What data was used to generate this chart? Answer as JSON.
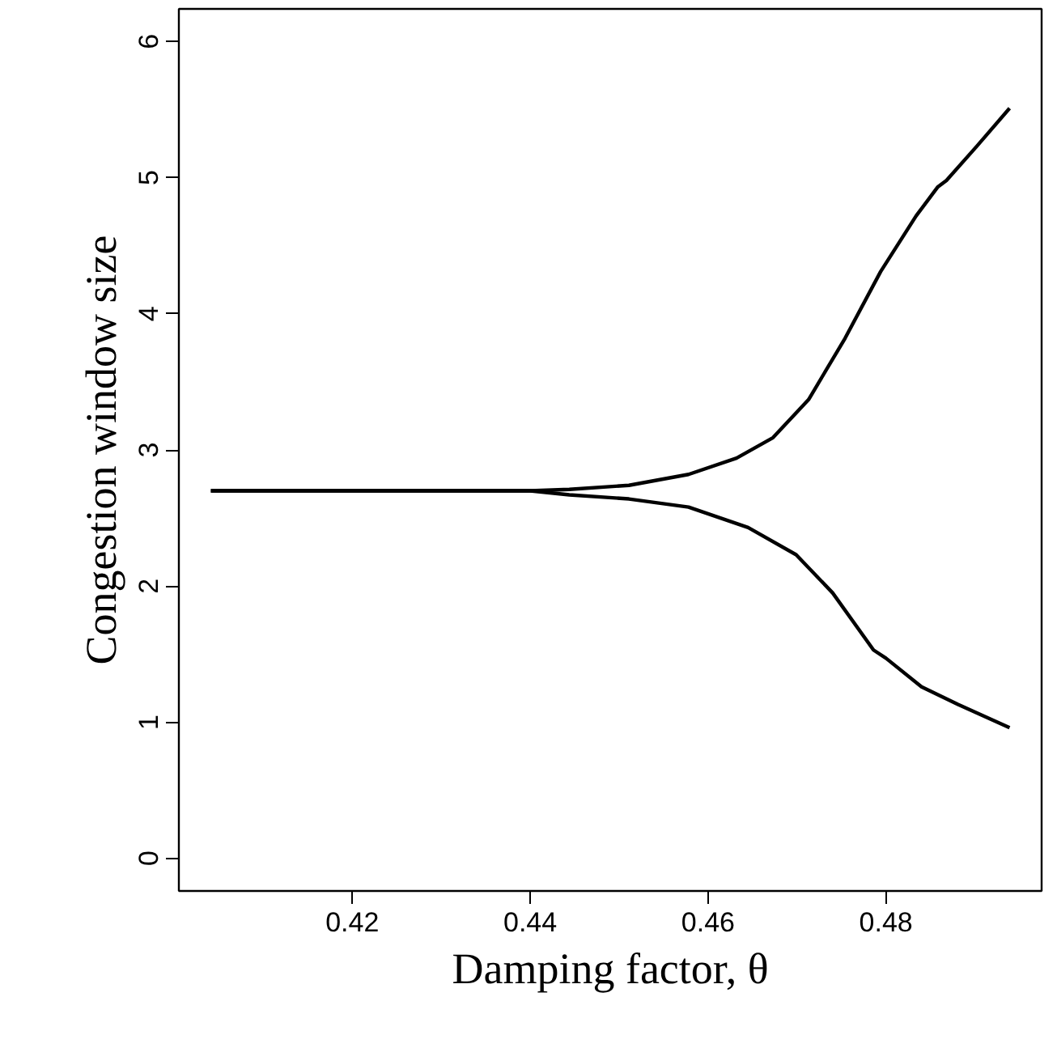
{
  "chart_data": {
    "type": "line",
    "xlabel": "Damping factor, θ",
    "ylabel": "Congestion window size",
    "xlim": [
      0.4005,
      0.4975
    ],
    "ylim": [
      -0.24,
      6.24
    ],
    "xticks": [
      0.42,
      0.44,
      0.46,
      0.48
    ],
    "yticks": [
      0,
      1,
      2,
      3,
      4,
      5,
      6
    ],
    "grid": false,
    "marker": "none",
    "line_style": "solid",
    "series": [
      {
        "color": "#000000",
        "x": [
          0.4041,
          0.42,
          0.43,
          0.44,
          0.4444,
          0.4511,
          0.4578,
          0.4632,
          0.4673,
          0.4713,
          0.4754,
          0.4794,
          0.4834,
          0.4858,
          0.4868,
          0.4902,
          0.4939
        ],
        "values": [
          2.7,
          2.7,
          2.7,
          2.7,
          2.71,
          2.74,
          2.82,
          2.94,
          3.09,
          3.37,
          3.82,
          4.31,
          4.72,
          4.93,
          4.98,
          5.23,
          5.51
        ]
      },
      {
        "color": "#000000",
        "x": [
          0.4041,
          0.42,
          0.43,
          0.44,
          0.4444,
          0.4511,
          0.4578,
          0.4645,
          0.4699,
          0.474,
          0.4786,
          0.48,
          0.484,
          0.4881,
          0.4939
        ],
        "values": [
          2.7,
          2.7,
          2.7,
          2.7,
          2.67,
          2.64,
          2.58,
          2.43,
          2.23,
          1.95,
          1.53,
          1.47,
          1.26,
          1.13,
          0.96
        ]
      }
    ]
  }
}
